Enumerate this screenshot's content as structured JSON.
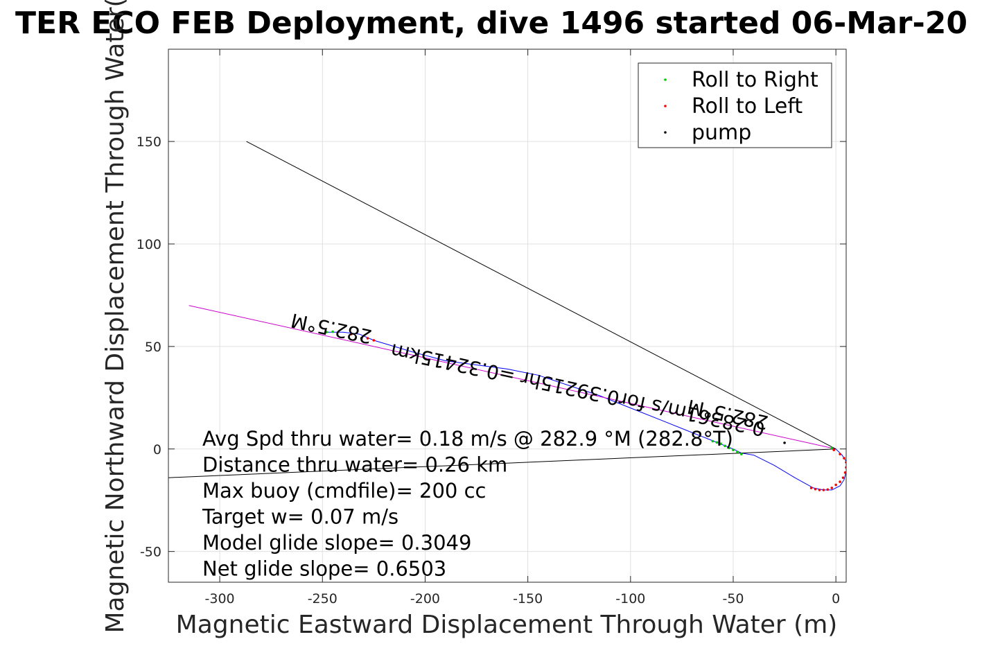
{
  "chart_data": {
    "type": "line",
    "title": "TER ECO FEB Deployment, dive 1496 started 06-Mar-20",
    "xlabel": "Magnetic Eastward Displacement Through Water (m)",
    "ylabel": "Magnetic Northward Displacement Through Water(",
    "xlim": [
      -325,
      5
    ],
    "ylim": [
      -65,
      195
    ],
    "xticks": [
      -300,
      -250,
      -200,
      -150,
      -100,
      -50,
      0
    ],
    "xtick_labels": [
      "-300",
      "-250",
      "-200",
      "-150",
      "-100",
      "-50",
      "0"
    ],
    "yticks": [
      -50,
      0,
      50,
      100,
      150
    ],
    "ytick_labels": [
      "-50",
      "0",
      "50",
      "100",
      "150"
    ],
    "grid": true,
    "legend_position": "top-right",
    "legend": [
      {
        "label": "Roll to Right",
        "color": "#00cc00"
      },
      {
        "label": "Roll to Left",
        "color": "#ff0000"
      },
      {
        "label": "pump",
        "color": "#000000"
      }
    ],
    "colors": {
      "track": "#0000ff",
      "heading_line": "#cc00cc",
      "roll_right": "#00cc00",
      "roll_left": "#ff0000",
      "pump": "#000000",
      "reference_lines": "#000000"
    },
    "series": [
      {
        "name": "track",
        "color": "#0000ff",
        "x": [
          0,
          3,
          5,
          5,
          4,
          2,
          -2,
          -6,
          -11,
          -20,
          -30,
          -40,
          -46,
          -50,
          -55,
          -60,
          -70,
          -85,
          -100,
          -115,
          -130,
          -145,
          -160,
          -175,
          -190,
          -205,
          -215,
          -225,
          -232,
          -240,
          -248
        ],
        "y": [
          0,
          -3,
          -6,
          -11,
          -15,
          -18,
          -20,
          -20,
          -19,
          -14,
          -8,
          -3,
          -2,
          0,
          2,
          4,
          8,
          14,
          20,
          26,
          31,
          36,
          39,
          41,
          43,
          47,
          50,
          53,
          56,
          57,
          57
        ]
      },
      {
        "name": "heading-line",
        "color": "#cc00cc",
        "x": [
          0,
          -315
        ],
        "y": [
          0,
          70
        ]
      },
      {
        "name": "reference-line-steep",
        "color": "#000000",
        "x": [
          0,
          -287
        ],
        "y": [
          0,
          150
        ]
      },
      {
        "name": "reference-line-shallow",
        "color": "#000000",
        "x": [
          0,
          -325
        ],
        "y": [
          0,
          -14
        ]
      }
    ],
    "markers": {
      "roll_left": [
        [
          -1,
          -0.5
        ],
        [
          2,
          -2.5
        ],
        [
          4,
          -4.5
        ],
        [
          5,
          -6.5
        ],
        [
          5,
          -9
        ],
        [
          4.5,
          -11.5
        ],
        [
          3.5,
          -14
        ],
        [
          2,
          -16
        ],
        [
          0,
          -17.5
        ],
        [
          -2,
          -19
        ],
        [
          -4,
          -19.8
        ],
        [
          -6,
          -20
        ],
        [
          -8,
          -20
        ],
        [
          -10,
          -19.6
        ],
        [
          -12,
          -19
        ],
        [
          -236,
          56
        ],
        [
          -228,
          54
        ],
        [
          -225,
          53
        ]
      ],
      "roll_right": [
        [
          -2,
          0.5
        ],
        [
          -46,
          -2.5
        ],
        [
          -48,
          -1.5
        ],
        [
          -50,
          -0.5
        ],
        [
          -52,
          0.5
        ],
        [
          -54,
          1.5
        ],
        [
          -56,
          2.5
        ],
        [
          -58,
          3.2
        ],
        [
          -60,
          3.8
        ],
        [
          -248,
          57
        ],
        [
          -245,
          57.2
        ]
      ],
      "pump": [
        [
          -25,
          3
        ],
        [
          -231,
          54
        ]
      ]
    },
    "annotations": [
      {
        "text": "282.5°M",
        "x": -245,
        "y": 62,
        "rotation_deg": 192
      },
      {
        "text": "282.5°M",
        "x": -52,
        "y": 20,
        "rotation_deg": 192
      },
      {
        "text": "0.28361m/s for0.39215hr =0.32415km",
        "x": -125,
        "y": 32,
        "rotation_deg": 192
      }
    ],
    "stats": [
      "Avg Spd thru water=  0.18 m/s @ 282.9 °M (282.8°T)",
      "Distance thru water=  0.26 km",
      "Max buoy (cmdfile)= 200 cc",
      "Target w= 0.07 m/s",
      "Model glide slope= 0.3049",
      "Net glide slope= 0.6503"
    ]
  }
}
